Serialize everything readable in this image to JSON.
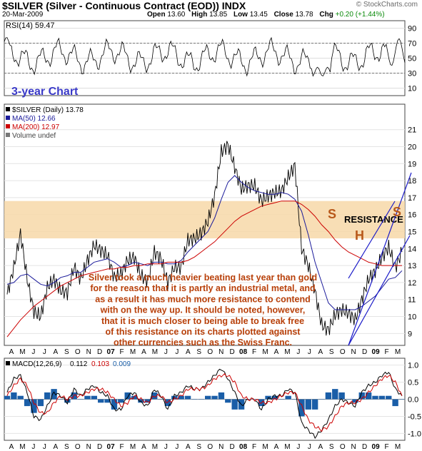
{
  "header": {
    "symbol_title": "$SILVER (Silver - Continuous Contract (EOD)) INDX",
    "date": "20-Mar-2009",
    "open_label": "Open",
    "open": "13.60",
    "high_label": "High",
    "high": "13.85",
    "low_label": "Low",
    "low": "13.45",
    "close_label": "Close",
    "close": "13.78",
    "chg_label": "Chg",
    "chg": "+0.20 (+1.44%)",
    "brand": "© StockCharts.com"
  },
  "chart_data": [
    {
      "type": "line",
      "panel": "rsi",
      "legend": "RSI(14) 59.47",
      "y_ticks": [
        90,
        70,
        50,
        30,
        10
      ],
      "ylim": [
        0,
        100
      ],
      "reference_lines": [
        70,
        30
      ],
      "annotation": "3-year Chart",
      "colors": {
        "line": "#000000",
        "overbought_fill": "#4a8a4a",
        "oversold_fill": "#4a8a4a",
        "annotation": "#3a3ac8"
      }
    },
    {
      "type": "line",
      "panel": "price",
      "legend": [
        "$SILVER (Daily) 13.78",
        "MA(50) 12.66",
        "MA(200) 12.97",
        "Volume undef"
      ],
      "y_ticks": [
        21,
        20,
        19,
        18,
        17,
        16,
        15,
        14,
        13,
        12,
        11,
        10,
        9
      ],
      "ylim": [
        8.3,
        22.5
      ],
      "x_ticks": [
        "A",
        "M",
        "J",
        "J",
        "A",
        "S",
        "O",
        "N",
        "D",
        "07",
        "F",
        "M",
        "A",
        "M",
        "J",
        "J",
        "A",
        "S",
        "O",
        "N",
        "D",
        "08",
        "F",
        "M",
        "A",
        "M",
        "J",
        "J",
        "A",
        "S",
        "O",
        "N",
        "D",
        "09",
        "F",
        "M"
      ],
      "resistance_band": [
        14.6,
        16.8
      ],
      "resistance_label": "RESISTANCE",
      "pattern_labels": [
        "S",
        "H",
        "S"
      ],
      "commentary": [
        "Silver took a much heavier beating last year than gold",
        "for the reason that it is partly an industrial metal, and",
        "as a result it has much more resistance to contend",
        "with on the way up. It should be noted, however,",
        "that it is much closer to being able to break free",
        "of this resistance on its charts plotted against",
        "other currencies such as the Swiss Franc."
      ],
      "series": [
        {
          "name": "$SILVER (Daily)",
          "values": [
            11.3,
            12.9,
            14.9,
            12.2,
            10.3,
            10.0,
            11.7,
            12.2,
            11.5,
            11.4,
            12.9,
            12.2,
            13.3,
            14.2,
            13.9,
            13.6,
            12.3,
            12.5,
            13.3,
            13.5,
            12.4,
            12.1,
            13.8,
            13.4,
            12.0,
            12.9,
            12.9,
            14.5,
            14.6,
            14.9,
            15.6,
            17.1,
            19.7,
            20.1,
            18.8,
            17.5,
            17.7,
            17.7,
            16.8,
            17.1,
            17.3,
            17.4,
            18.2,
            18.9,
            14.0,
            13.0,
            11.5,
            9.5,
            9.2,
            10.1,
            10.4,
            10.2,
            9.8,
            11.0,
            12.2,
            12.7,
            13.5,
            14.1,
            12.9,
            13.8
          ],
          "color": "#000000"
        },
        {
          "name": "MA(50)",
          "values": [
            11.9,
            12.0,
            12.4,
            12.5,
            12.2,
            11.9,
            11.8,
            12.0,
            12.3,
            12.4,
            12.6,
            12.6,
            12.9,
            13.2,
            13.3,
            13.4,
            13.2,
            12.9,
            13.0,
            13.2,
            13.1,
            13.0,
            13.2,
            13.2,
            13.1,
            13.1,
            13.3,
            13.8,
            14.2,
            14.6,
            15.0,
            15.8,
            16.9,
            17.9,
            18.3,
            17.9,
            17.6,
            17.4,
            17.3,
            17.2,
            17.2,
            17.3,
            17.2,
            16.9,
            16.2,
            14.8,
            13.2,
            12.0,
            10.8,
            10.4,
            10.4,
            10.4,
            10.4,
            10.6,
            10.9,
            11.2,
            11.7,
            12.2,
            12.3,
            12.7
          ],
          "color": "#1a1a9a"
        },
        {
          "name": "MA(200)",
          "values": [
            8.8,
            9.3,
            9.8,
            10.2,
            10.6,
            10.9,
            11.2,
            11.5,
            11.8,
            12.0,
            12.2,
            12.4,
            12.5,
            12.6,
            12.7,
            12.8,
            12.8,
            12.9,
            12.9,
            13.0,
            13.0,
            13.1,
            13.1,
            13.1,
            13.2,
            13.2,
            13.2,
            13.3,
            13.5,
            13.8,
            14.1,
            14.4,
            14.8,
            15.2,
            15.6,
            15.9,
            16.1,
            16.3,
            16.5,
            16.6,
            16.7,
            16.8,
            16.8,
            16.8,
            16.6,
            16.3,
            15.9,
            15.4,
            15.0,
            14.5,
            14.1,
            13.8,
            13.6,
            13.4,
            13.2,
            13.1,
            13.0,
            13.0,
            13.0,
            13.0
          ],
          "color": "#cc0000"
        }
      ]
    },
    {
      "type": "line",
      "panel": "macd",
      "legend_name": "MACD(12,26,9)",
      "legend_values": [
        "0.112",
        "0.103",
        "0.009"
      ],
      "legend_colors": [
        "#000000",
        "#cc0000",
        "#1a5ea8"
      ],
      "y_ticks": [
        1.0,
        0.5,
        0.0,
        -0.5,
        -1.0
      ],
      "ylim": [
        -1.2,
        1.2
      ],
      "x_ticks": [
        "A",
        "M",
        "J",
        "J",
        "A",
        "S",
        "O",
        "N",
        "D",
        "07",
        "F",
        "M",
        "A",
        "M",
        "J",
        "J",
        "A",
        "S",
        "O",
        "N",
        "D",
        "08",
        "F",
        "M",
        "A",
        "M",
        "J",
        "J",
        "A",
        "S",
        "O",
        "N",
        "D",
        "09",
        "F",
        "M"
      ],
      "series": [
        {
          "name": "MACD",
          "values": [
            0.2,
            0.6,
            0.7,
            0.2,
            -0.5,
            -0.6,
            -0.2,
            0.2,
            0.1,
            -0.1,
            0.3,
            0.1,
            0.3,
            0.4,
            0.2,
            0.1,
            -0.3,
            -0.3,
            0.1,
            0.2,
            -0.1,
            -0.2,
            0.3,
            0.1,
            -0.3,
            0.1,
            0.2,
            0.4,
            0.3,
            0.3,
            0.5,
            0.7,
            0.9,
            0.6,
            0.2,
            -0.2,
            0.0,
            0.0,
            -0.3,
            0.0,
            0.1,
            0.1,
            0.3,
            0.2,
            -0.7,
            -0.9,
            -1.1,
            -0.9,
            -0.6,
            -0.2,
            0.0,
            -0.1,
            -0.2,
            0.2,
            0.4,
            0.5,
            0.7,
            0.8,
            0.3,
            0.1
          ],
          "color": "#000000"
        },
        {
          "name": "Signal",
          "values": [
            0.1,
            0.4,
            0.6,
            0.4,
            -0.1,
            -0.4,
            -0.4,
            -0.1,
            0.1,
            0.0,
            0.1,
            0.1,
            0.2,
            0.3,
            0.3,
            0.2,
            0.0,
            -0.2,
            -0.1,
            0.1,
            0.0,
            -0.1,
            0.1,
            0.1,
            -0.1,
            0.0,
            0.1,
            0.3,
            0.3,
            0.3,
            0.4,
            0.6,
            0.7,
            0.7,
            0.5,
            0.1,
            0.0,
            0.0,
            -0.1,
            -0.1,
            0.0,
            0.1,
            0.2,
            0.2,
            -0.2,
            -0.6,
            -0.8,
            -0.9,
            -0.8,
            -0.5,
            -0.2,
            -0.1,
            -0.1,
            0.0,
            0.2,
            0.4,
            0.6,
            0.7,
            0.5,
            0.1
          ],
          "color": "#cc0000"
        },
        {
          "name": "Histogram",
          "values": [
            0.1,
            0.2,
            0.1,
            -0.2,
            -0.4,
            -0.2,
            0.2,
            0.3,
            0.0,
            -0.1,
            0.2,
            0.0,
            0.1,
            0.1,
            -0.1,
            -0.1,
            -0.3,
            -0.1,
            0.2,
            0.1,
            -0.1,
            -0.1,
            0.2,
            0.0,
            -0.2,
            0.1,
            0.1,
            0.1,
            0.0,
            0.0,
            0.1,
            0.1,
            0.2,
            -0.1,
            -0.3,
            -0.3,
            0.0,
            0.0,
            -0.2,
            0.1,
            0.1,
            0.0,
            0.1,
            0.0,
            -0.5,
            -0.3,
            -0.3,
            0.0,
            0.2,
            0.3,
            0.2,
            0.0,
            -0.1,
            0.2,
            0.2,
            0.1,
            0.1,
            0.1,
            -0.2,
            0.0
          ],
          "color": "#1a5ea8"
        }
      ]
    }
  ]
}
